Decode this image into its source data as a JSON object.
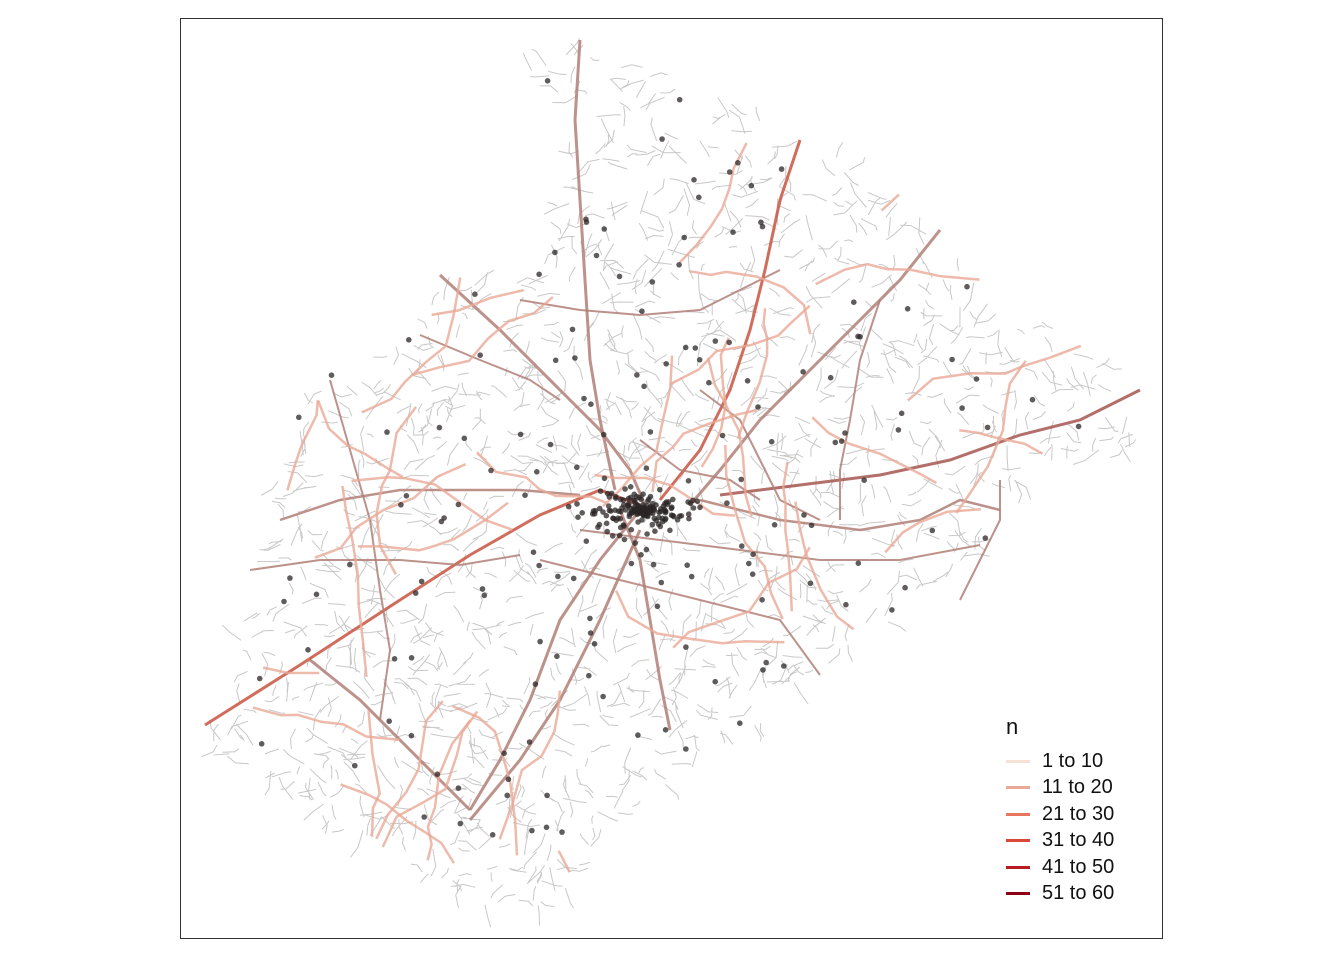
{
  "map": {
    "background_color": "#ffffff",
    "frame_color": "#333333",
    "street_color": "#c8c8c8",
    "point_color": "#2b2626"
  },
  "legend": {
    "title": "n",
    "items": [
      {
        "label": "1 to 10",
        "color": "#f6e1d7"
      },
      {
        "label": "11 to 20",
        "color": "#e8a996"
      },
      {
        "label": "21 to 30",
        "color": "#e7765f"
      },
      {
        "label": "31 to 40",
        "color": "#d9483a"
      },
      {
        "label": "41 to 50",
        "color": "#b71c24"
      },
      {
        "label": "51 to 60",
        "color": "#8e0016"
      }
    ]
  }
}
